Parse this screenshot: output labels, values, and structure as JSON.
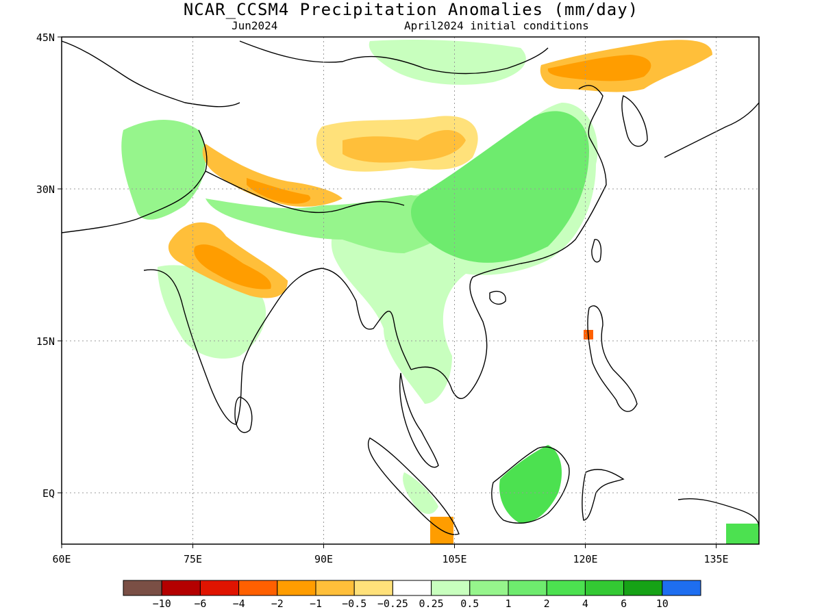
{
  "title": "NCAR_CCSM4 Precipitation Anomalies (mm/day)",
  "valid_month": "Jun2024",
  "init_conditions": "April2024 initial conditions",
  "map": {
    "region": "South and East Asia",
    "projection": "lat-lon",
    "lon_range": [
      60,
      140
    ],
    "lat_range": [
      -5,
      45
    ],
    "gridlines": "dotted",
    "lon_ticks": [
      "60E",
      "75E",
      "90E",
      "105E",
      "120E",
      "135E"
    ],
    "lat_ticks": [
      "45N",
      "30N",
      "15N",
      "EQ"
    ],
    "colors": {
      "ocean": "#ffffff",
      "coastline": "#000000"
    }
  },
  "colorbar": {
    "colors": [
      "#7a4f45",
      "#b40000",
      "#e01400",
      "#ff6000",
      "#ff9d00",
      "#ffbf3a",
      "#ffe17a",
      "#ffffff",
      "#c8ffbe",
      "#96f58c",
      "#6eeb6e",
      "#4ce150",
      "#33c933",
      "#16a216",
      "#1e6ef0"
    ],
    "labels": [
      "−10",
      "−6",
      "−4",
      "−2",
      "−1",
      "−0.5",
      "−0.25",
      "0.25",
      "0.5",
      "1",
      "2",
      "4",
      "6",
      "10"
    ]
  },
  "anomaly_regions": [
    {
      "area": "Northeast China / Korea",
      "class": "-1 to -2"
    },
    {
      "area": "Tibetan Plateau",
      "class": "-0.5 to -1"
    },
    {
      "area": "Himalaya / Nepal",
      "class": "-1 to -2"
    },
    {
      "area": "Central India",
      "class": "-1 to -2"
    },
    {
      "area": "South China / Indochina",
      "class": "1 to 2"
    },
    {
      "area": "Borneo",
      "class": "2 to 4"
    },
    {
      "area": "Northern Pakistan",
      "class": "0.5 to 1"
    }
  ]
}
